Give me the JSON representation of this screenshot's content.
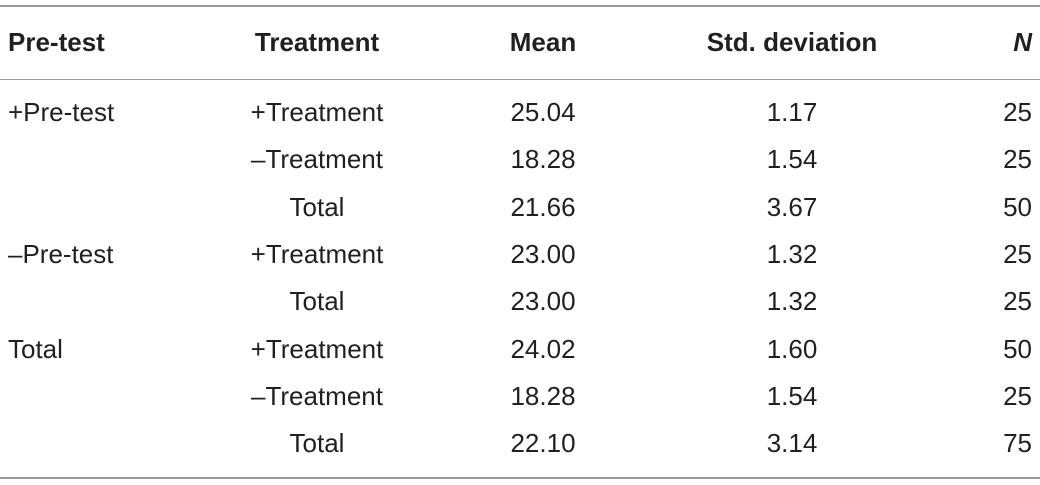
{
  "table": {
    "header": [
      "Pre-test",
      "Treatment",
      "Mean",
      "Std. deviation",
      "N"
    ],
    "rows": [
      [
        "+Pre-test",
        "+Treatment",
        "25.04",
        "1.17",
        "25"
      ],
      [
        null,
        "–Treatment",
        "18.28",
        "1.54",
        "25"
      ],
      [
        null,
        "Total",
        "21.66",
        "3.67",
        "50"
      ],
      [
        "–Pre-test",
        "+Treatment",
        "23.00",
        "1.32",
        "25"
      ],
      [
        null,
        "Total",
        "23.00",
        "1.32",
        "25"
      ],
      [
        "Total",
        "+Treatment",
        "24.02",
        "1.60",
        "50"
      ],
      [
        null,
        "–Treatment",
        "18.28",
        "1.54",
        "25"
      ],
      [
        null,
        "Total",
        "22.10",
        "3.14",
        "75"
      ]
    ]
  }
}
